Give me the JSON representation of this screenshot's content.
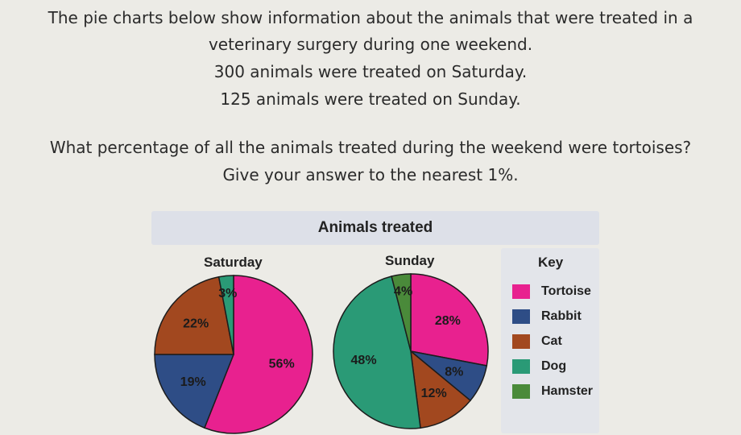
{
  "question": {
    "intro_line1": "The pie charts below show information about the animals that were treated in a",
    "intro_line2": "veterinary surgery during one weekend.",
    "saturday_line": "300 animals were treated on Saturday.",
    "sunday_line": "125 animals were treated on Sunday.",
    "ask_line": "What percentage of all the animals treated during the weekend were tortoises?",
    "round_line": "Give your answer to the nearest 1%."
  },
  "colors": {
    "Tortoise": "#e8218f",
    "Rabbit": "#2e4d86",
    "Cat": "#a2481f",
    "Dog": "#2a9a76",
    "Hamster": "#4a8a3a"
  },
  "chart_data": {
    "type": "pie",
    "title": "Animals treated",
    "key_title": "Key",
    "key": [
      "Tortoise",
      "Rabbit",
      "Cat",
      "Dog",
      "Hamster"
    ],
    "pies": [
      {
        "name": "Saturday",
        "slices": [
          {
            "category": "Tortoise",
            "value": 56,
            "label": "56%"
          },
          {
            "category": "Rabbit",
            "value": 19,
            "label": "19%"
          },
          {
            "category": "Cat",
            "value": 22,
            "label": "22%"
          },
          {
            "category": "Dog",
            "value": 3,
            "label": "3%"
          }
        ]
      },
      {
        "name": "Sunday",
        "slices": [
          {
            "category": "Tortoise",
            "value": 28,
            "label": "28%"
          },
          {
            "category": "Rabbit",
            "value": 8,
            "label": "8%"
          },
          {
            "category": "Cat",
            "value": 12,
            "label": "12%"
          },
          {
            "category": "Dog",
            "value": 48,
            "label": "48%"
          },
          {
            "category": "Hamster",
            "value": 4,
            "label": "4%"
          }
        ]
      }
    ]
  }
}
